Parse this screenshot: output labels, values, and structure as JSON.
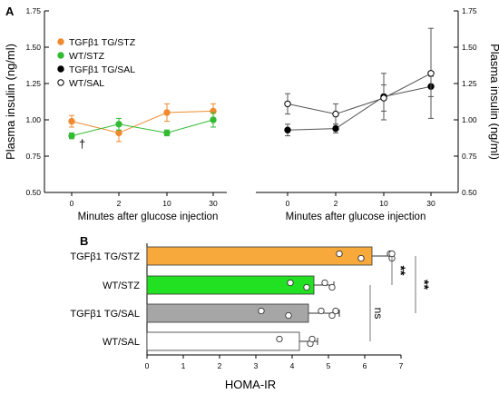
{
  "chart_data": [
    {
      "panel": "A",
      "type": "line",
      "ylabel": "Plasma insulin (ng/ml)",
      "xlabel": "Minutes after glucose injection",
      "categories": [
        "0",
        "2",
        "10",
        "30"
      ],
      "ylim": [
        0.5,
        1.75
      ],
      "yticks": [
        "0.50",
        "0.75",
        "1.00",
        "1.25",
        "1.50",
        "1.75"
      ],
      "legend_position": "top-left",
      "annotation": "†",
      "series": [
        {
          "name": "TGFβ1 TG/STZ",
          "color": "#f08a30",
          "values": [
            0.99,
            0.91,
            1.05,
            1.06
          ],
          "err": [
            0.04,
            0.06,
            0.06,
            0.05
          ]
        },
        {
          "name": "WT/STZ",
          "color": "#33bb33",
          "values": [
            0.89,
            0.97,
            0.91,
            1.0
          ],
          "err": [
            0.02,
            0.04,
            0.02,
            0.05
          ]
        },
        {
          "name": "TGFβ1 TG/SAL",
          "color": "#000000",
          "values": [
            0.93,
            0.94,
            1.16,
            1.23
          ],
          "err": [
            0.04,
            0.03,
            0.16,
            0.07
          ]
        },
        {
          "name": "WT/SAL",
          "color": "#ffffff",
          "values": [
            1.11,
            1.04,
            1.15,
            1.32
          ],
          "err": [
            0.07,
            0.07,
            0.09,
            0.31
          ]
        }
      ]
    },
    {
      "panel": "B",
      "type": "bar",
      "orientation": "horizontal",
      "xlabel": "HOMA-IR",
      "xlim": [
        0,
        7
      ],
      "xticks": [
        "0",
        "1",
        "2",
        "3",
        "4",
        "5",
        "6",
        "7"
      ],
      "categories": [
        "TGFβ1 TG/STZ",
        "WT/STZ",
        "TGFβ1 TG/SAL",
        "WT/SAL"
      ],
      "colors": [
        "#f7a93b",
        "#22e022",
        "#a6a6a6",
        "#ffffff"
      ],
      "values": [
        6.2,
        4.6,
        4.45,
        4.2
      ],
      "err": [
        0.55,
        0.55,
        0.85,
        0.5
      ],
      "points": [
        [
          5.3,
          5.9,
          6.7,
          6.75,
          6.75
        ],
        [
          3.95,
          4.4,
          4.9,
          5.1
        ],
        [
          3.15,
          3.9,
          4.8,
          5.1,
          5.2
        ],
        [
          3.65,
          4.5,
          4.55
        ]
      ],
      "significance": [
        {
          "from": "TGFβ1 TG/STZ",
          "to": "WT/STZ",
          "label": "**"
        },
        {
          "from": "TGFβ1 TG/STZ",
          "to": "TGFβ1 TG/SAL",
          "label": "**"
        },
        {
          "from": "WT/STZ",
          "to": "WT/SAL",
          "label": "ns"
        }
      ]
    }
  ]
}
